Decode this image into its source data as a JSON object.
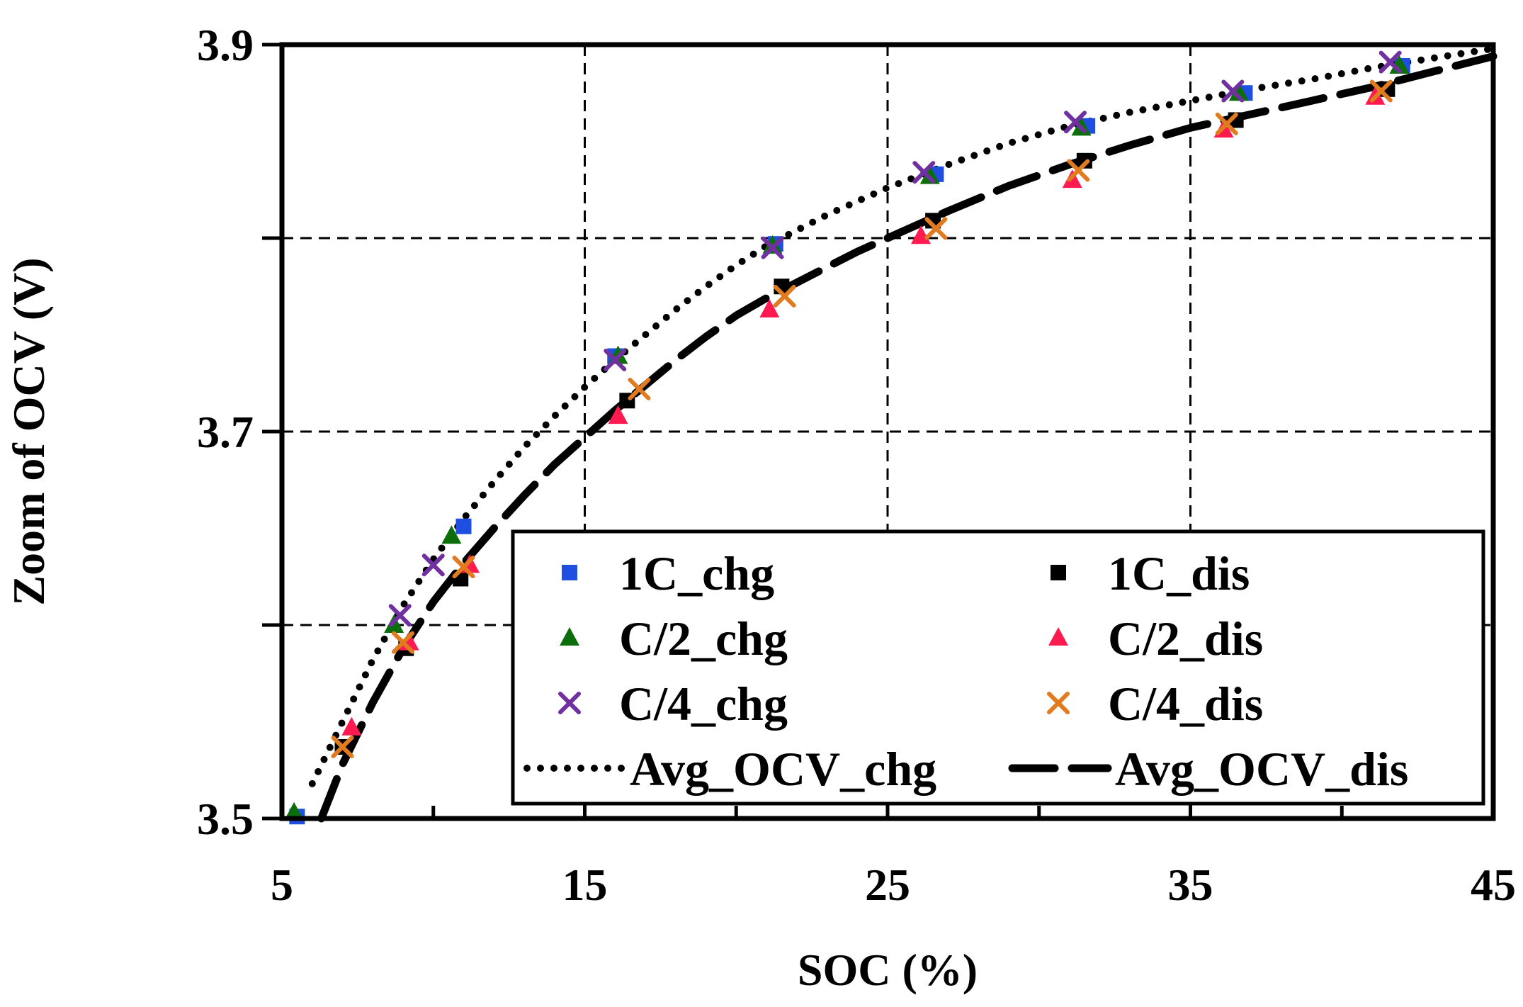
{
  "chart_data": {
    "type": "scatter",
    "title": "",
    "xlabel": "SOC (%)",
    "ylabel": "Zoom of OCV (V)",
    "xlim": [
      5,
      45
    ],
    "ylim": [
      3.5,
      3.9
    ],
    "x_ticks": [
      5,
      15,
      25,
      35,
      45
    ],
    "x_tick_labels": [
      "5",
      "15",
      "25",
      "35",
      "45"
    ],
    "y_ticks": [
      3.5,
      3.7,
      3.9
    ],
    "y_tick_labels": [
      "3.5",
      "3.7",
      "3.9"
    ],
    "grid": {
      "x": [
        15,
        25,
        35
      ],
      "y": [
        3.6,
        3.7,
        3.8
      ],
      "style": "dashed"
    },
    "legend_position": "bottom-right",
    "series": [
      {
        "name": "1C_chg",
        "marker": "square",
        "color": "#1f4fe0",
        "x": [
          5.5,
          11.0,
          16.0,
          21.3,
          26.6,
          31.6,
          36.8,
          42.0
        ],
        "y": [
          3.501,
          3.651,
          3.739,
          3.797,
          3.833,
          3.858,
          3.875,
          3.889
        ]
      },
      {
        "name": "1C_dis",
        "marker": "square",
        "color": "#000000",
        "x": [
          7.0,
          9.1,
          10.9,
          16.4,
          21.5,
          26.5,
          31.5,
          36.5,
          41.5
        ],
        "y": [
          3.537,
          3.588,
          3.624,
          3.716,
          3.775,
          3.809,
          3.84,
          3.861,
          3.877
        ]
      },
      {
        "name": "C/2_chg",
        "marker": "triangle",
        "color": "#0b6e0b",
        "x": [
          5.4,
          8.7,
          10.6,
          16.1,
          21.2,
          26.4,
          31.4,
          36.6,
          41.9
        ],
        "y": [
          3.503,
          3.6,
          3.646,
          3.739,
          3.796,
          3.832,
          3.857,
          3.875,
          3.889
        ]
      },
      {
        "name": "C/2_dis",
        "marker": "triangle",
        "color": "#ff1a50",
        "x": [
          7.3,
          9.2,
          11.2,
          16.1,
          21.1,
          26.1,
          31.1,
          36.1,
          41.1
        ],
        "y": [
          3.547,
          3.591,
          3.631,
          3.708,
          3.763,
          3.801,
          3.83,
          3.856,
          3.873
        ]
      },
      {
        "name": "C/4_chg",
        "marker": "x",
        "color": "#7030a0",
        "x": [
          8.9,
          10.0,
          16.0,
          21.2,
          26.2,
          31.2,
          36.4,
          41.6
        ],
        "y": [
          3.605,
          3.631,
          3.737,
          3.795,
          3.834,
          3.86,
          3.876,
          3.891
        ]
      },
      {
        "name": "C/4_dis",
        "marker": "x",
        "color": "#e07b20",
        "x": [
          7.0,
          9.0,
          11.0,
          16.8,
          21.6,
          26.6,
          31.3,
          36.2,
          41.3
        ],
        "y": [
          3.537,
          3.591,
          3.63,
          3.722,
          3.77,
          3.805,
          3.835,
          3.859,
          3.876
        ]
      },
      {
        "name": "Avg_OCV_chg",
        "line": "dotted",
        "color": "#000000",
        "x": [
          6.0,
          7.0,
          8.0,
          9.0,
          10.0,
          11.0,
          12.0,
          13.0,
          14.0,
          15.0,
          16.0,
          17.0,
          18.0,
          19.0,
          20.0,
          21.0,
          23.0,
          25.0,
          27.0,
          29.0,
          31.0,
          33.0,
          35.0,
          37.0,
          39.0,
          41.0,
          43.0,
          45.0
        ],
        "y": [
          3.518,
          3.55,
          3.582,
          3.61,
          3.634,
          3.655,
          3.674,
          3.692,
          3.708,
          3.723,
          3.737,
          3.75,
          3.763,
          3.775,
          3.786,
          3.796,
          3.812,
          3.826,
          3.838,
          3.849,
          3.858,
          3.865,
          3.871,
          3.877,
          3.882,
          3.888,
          3.893,
          3.898
        ]
      },
      {
        "name": "Avg_OCV_dis",
        "line": "long-dash",
        "color": "#000000",
        "x": [
          6.3,
          7.0,
          8.0,
          9.0,
          10.0,
          11.0,
          12.0,
          13.0,
          14.0,
          15.0,
          16.0,
          17.0,
          18.0,
          19.0,
          20.0,
          21.0,
          22.0,
          23.0,
          24.0,
          25.0,
          27.0,
          29.0,
          31.0,
          33.0,
          35.0,
          37.0,
          39.0,
          41.0,
          43.0,
          45.0
        ],
        "y": [
          3.5,
          3.528,
          3.56,
          3.588,
          3.612,
          3.632,
          3.65,
          3.667,
          3.683,
          3.697,
          3.711,
          3.724,
          3.737,
          3.749,
          3.76,
          3.769,
          3.777,
          3.785,
          3.793,
          3.8,
          3.814,
          3.827,
          3.838,
          3.848,
          3.857,
          3.864,
          3.871,
          3.878,
          3.886,
          3.894
        ]
      }
    ]
  }
}
